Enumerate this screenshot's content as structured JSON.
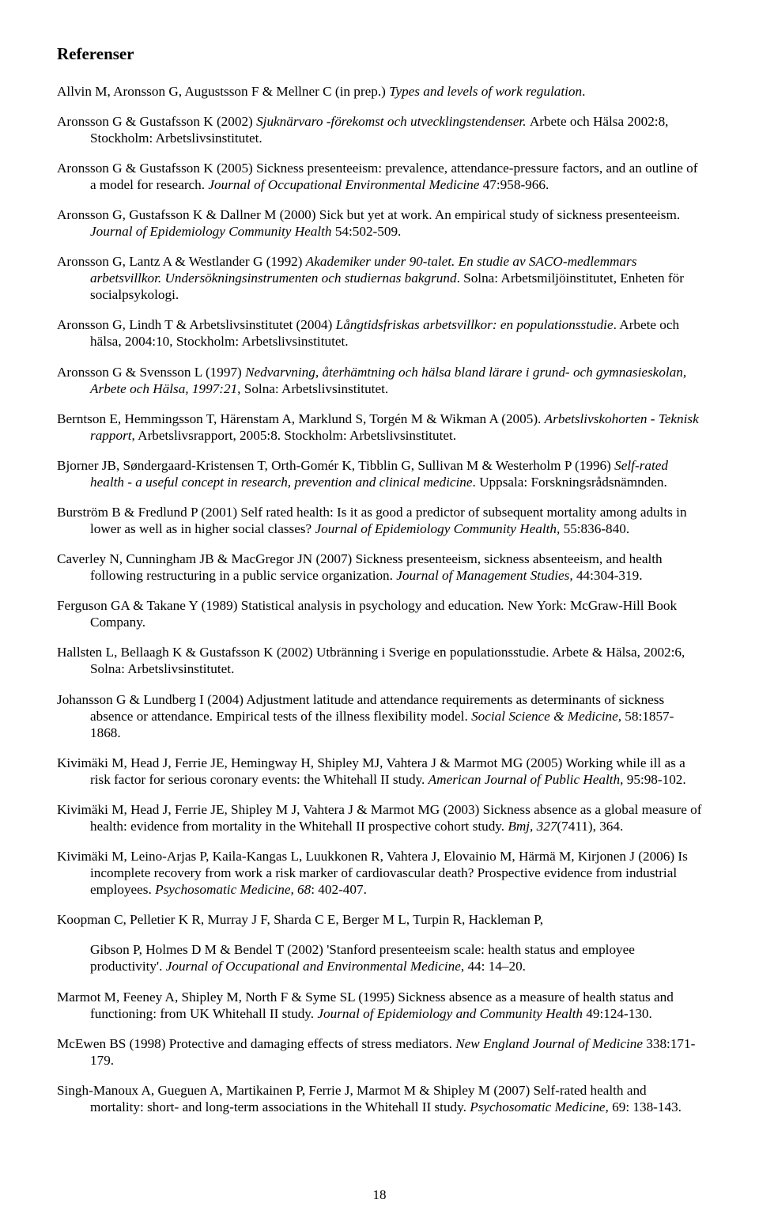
{
  "title": "Referenser",
  "references": [
    "Allvin M, Aronsson G, Augustsson F & Mellner C (in prep.) <em>Types and levels of work regulation</em>.",
    "Aronsson G & Gustafsson K (2002) <em>Sjuknärvaro -förekomst och utvecklingstendenser. </em>Arbete och Hälsa 2002:8, Stockholm: Arbetslivsinstitutet.",
    "Aronsson G & Gustafsson K (2005) Sickness presenteeism: prevalence, attendance-pressure factors, and an outline of a model for research. <em>Journal of Occupational Environmental  Medicine</em> 47:958-966.",
    "Aronsson G, Gustafsson K & Dallner M (2000) Sick but yet at work. An empirical study of sickness presenteeism. <em>Journal of Epidemiology Community Health</em> 54:502-509.",
    "Aronsson G, Lantz A & Westlander G (1992) <em>Akademiker under 90-talet. En studie av SACO-medlemmars arbetsvillkor. Undersökningsinstrumenten och studiernas bakgrund</em>. Solna: Arbetsmiljöinstitutet, Enheten för socialpsykologi.",
    "Aronsson G, Lindh T & Arbetslivsinstitutet (2004) <em>Långtidsfriskas arbetsvillkor: en populationsstudie</em>. Arbete och  hälsa, 2004:10, Stockholm: Arbetslivsinstitutet.",
    "Aronsson G & Svensson L (1997) <em>Nedvarvning, återhämtning och hälsa bland lärare i grund- och gymnasieskolan, Arbete och Hälsa, 1997:21</em>, Solna: Arbetslivsinstitutet.",
    "Berntson E, Hemmingsson T, Härenstam A, Marklund S, Torgén M & Wikman A (2005). <em>Arbetslivskohorten - Teknisk rapport</em>, Arbetslivsrapport, 2005:8. Stockholm: Arbetslivsinstitutet.",
    "Bjorner JB, Søndergaard-Kristensen T, Orth-Gomér K, Tibblin G, Sullivan M & Westerholm P (1996) <em>Self-rated health - a useful concept in research, prevention and clinical medicine</em>. Uppsala: Forskningsrådsnämnden.",
    "Burström B & Fredlund P (2001) Self rated health: Is it as good a predictor of subsequent mortality among adults in lower as well as in higher social classes? <em>Journal of Epidemiology Community Health,</em> 55:836-840.",
    "Caverley N, Cunningham JB & MacGregor JN (2007) Sickness presenteeism, sickness absenteeism, and health following restructuring in a public service organization. <em>Journal of Management Studies,</em> 44:304-319.",
    "Ferguson GA & Takane Y (1989) Statistical analysis in psychology and education<em>. </em>New York: McGraw-Hill Book Company.",
    "Hallsten L, Bellaagh K & Gustafsson K (2002) Utbränning i Sverige en populationsstudie. Arbete & Hälsa, 2002:6, Solna: Arbetslivsinstitutet.",
    "Johansson G & Lundberg I (2004) Adjustment latitude and attendance requirements as determinants of sickness absence or attendance. Empirical tests of the illness flexibility model. <em>Social Science & Medicine,</em> 58:1857-1868.",
    "Kivimäki M, Head J, Ferrie JE, Hemingway H, Shipley MJ, Vahtera J & Marmot MG (2005) Working while ill as a risk factor for serious coronary events: the Whitehall II study. <em>American Journal of Public Health,</em> 95:98-102.",
    "Kivimäki M, Head J, Ferrie JE, Shipley M J, Vahtera J & Marmot MG (2003) Sickness absence as a global measure of health: evidence from mortality in the Whitehall II prospective cohort study. <em>Bmj, 327</em>(7411), 364.",
    "Kivimäki M, Leino-Arjas P, Kaila-Kangas L, Luukkonen R, Vahtera J, Elovainio M, Härmä M, Kirjonen J (2006) Is incomplete recovery from work a risk marker of cardiovascular death? Prospective evidence from industrial employees. <em>Psychosomatic Medicine, 68</em>: 402-407.",
    "Koopman C, Pelletier K R, Murray J F, Sharda C E, Berger M L, Turpin R, Hackleman P,",
    "Gibson P, Holmes D M & Bendel T (2002) 'Stanford presenteeism scale: health status and employee productivity'. <em>Journal of Occupational and Environmental Medicine</em>, 44: 14–20.",
    "Marmot M, Feeney A, Shipley M, North F & Syme SL (1995) Sickness absence as a measure of health status and functioning: from UK Whitehall II study. <em>Journal of Epidemiology and Community Health</em> 49:124-130.",
    "McEwen BS (1998) Protective and damaging effects of stress mediators. <em>New England Journal of Medicine</em> 338:171-179.",
    "Singh-Manoux A, Gueguen A, Martikainen P, Ferrie J, Marmot M & Shipley M (2007) Self-rated health and mortality: short- and long-term associations in the Whitehall II study. <em>Psychosomatic Medicine,</em> 69: 138-143."
  ],
  "specialIndent": {
    "18": true
  },
  "pageNumber": "18"
}
